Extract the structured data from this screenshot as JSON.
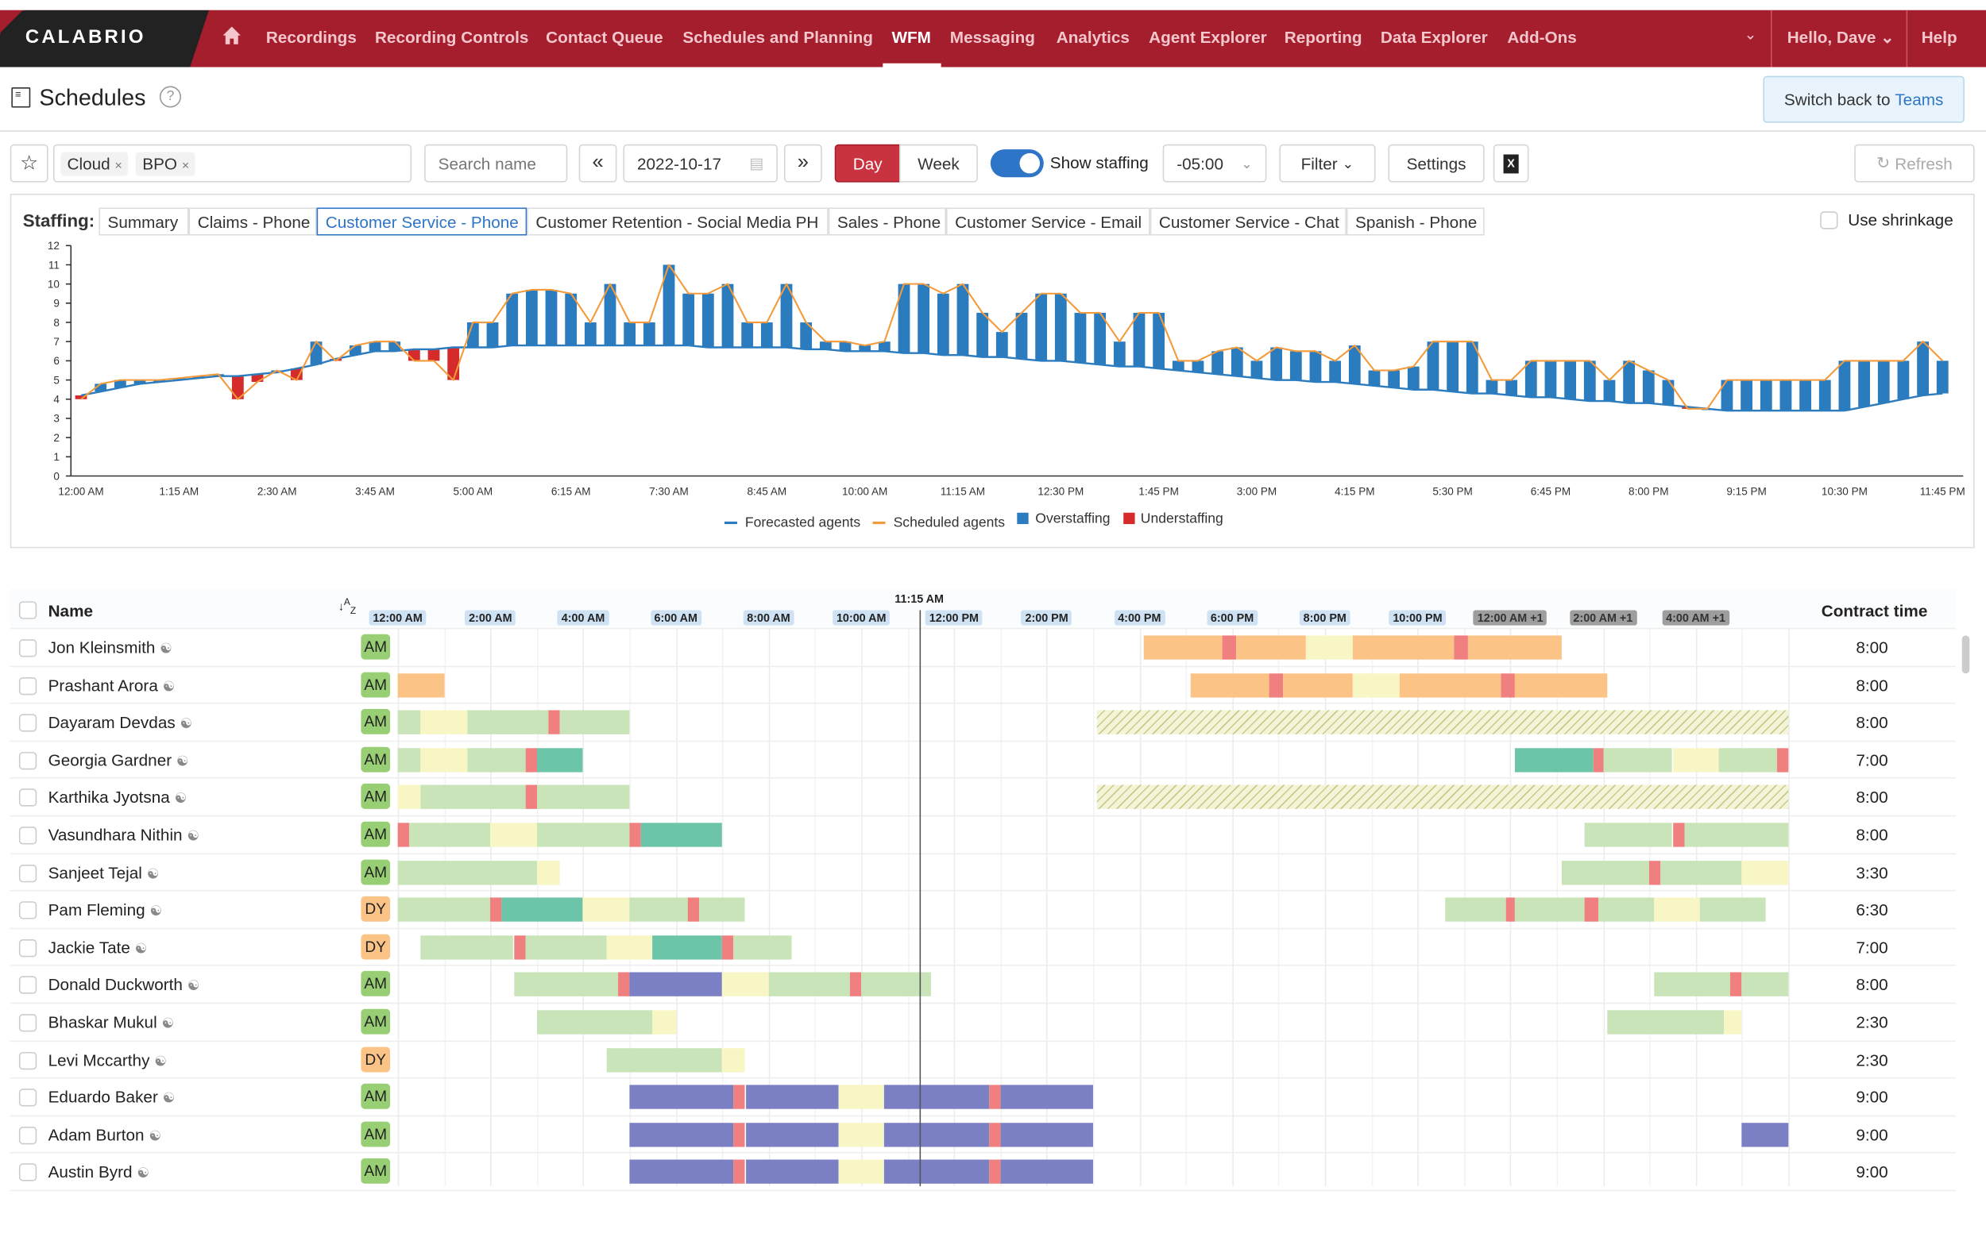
{
  "brand": "CALABRIO",
  "nav": {
    "items": [
      "Recordings",
      "Recording Controls",
      "Contact Queue",
      "Schedules and Planning",
      "WFM",
      "Messaging",
      "Analytics",
      "Agent Explorer",
      "Reporting",
      "Data Explorer",
      "Add-Ons"
    ],
    "active": "WFM",
    "greeting": "Hello, Dave",
    "help": "Help"
  },
  "page": {
    "title": "Schedules",
    "switch_prefix": "Switch back to ",
    "switch_link": "Teams"
  },
  "toolbar": {
    "filters": [
      "Cloud",
      "BPO"
    ],
    "search_placeholder": "Search name",
    "date": "2022-10-17",
    "day": "Day",
    "week": "Week",
    "show_staffing": "Show staffing",
    "show_staffing_on": true,
    "timezone": "-05:00",
    "filter": "Filter",
    "settings": "Settings",
    "refresh": "Refresh"
  },
  "staffing": {
    "label": "Staffing:",
    "tabs": [
      "Summary",
      "Claims - Phone",
      "Customer Service - Phone",
      "Customer Retention - Social Media PH",
      "Sales - Phone",
      "Customer Service - Email",
      "Customer Service - Chat",
      "Spanish - Phone"
    ],
    "selected": "Customer Service - Phone",
    "use_shrinkage": "Use shrinkage"
  },
  "chart_data": {
    "type": "bar",
    "xlabel": "",
    "ylabel": "",
    "ylim": [
      0,
      12
    ],
    "yticks": [
      0,
      1,
      2,
      3,
      4,
      5,
      6,
      7,
      8,
      9,
      10,
      11,
      12
    ],
    "xticks": [
      "12:00 AM",
      "1:15 AM",
      "2:30 AM",
      "3:45 AM",
      "5:00 AM",
      "6:15 AM",
      "7:30 AM",
      "8:45 AM",
      "10:00 AM",
      "11:15 AM",
      "12:30 PM",
      "1:45 PM",
      "3:00 PM",
      "4:15 PM",
      "5:30 PM",
      "6:45 PM",
      "8:00 PM",
      "9:15 PM",
      "10:30 PM",
      "11:45 PM"
    ],
    "interval_minutes": 15,
    "legend": [
      "Forecasted agents",
      "Scheduled agents",
      "Overstaffing",
      "Understaffing"
    ],
    "legend_position": "bottom",
    "colors": {
      "forecast": "#2b7bbf",
      "scheduled": "#f39a3a",
      "over": "#2b7bbf",
      "under": "#d62b2b"
    },
    "series": [
      {
        "name": "Forecasted agents",
        "values": [
          4.2,
          4.4,
          4.6,
          4.8,
          4.9,
          5.0,
          5.1,
          5.2,
          5.2,
          5.3,
          5.4,
          5.6,
          5.8,
          6.1,
          6.3,
          6.5,
          6.5,
          6.6,
          6.6,
          6.7,
          6.7,
          6.7,
          6.8,
          6.8,
          6.8,
          6.8,
          6.8,
          6.8,
          6.8,
          6.8,
          6.8,
          6.8,
          6.7,
          6.7,
          6.7,
          6.7,
          6.7,
          6.6,
          6.6,
          6.5,
          6.5,
          6.5,
          6.4,
          6.4,
          6.3,
          6.3,
          6.2,
          6.2,
          6.1,
          6.0,
          6.0,
          5.9,
          5.8,
          5.7,
          5.7,
          5.6,
          5.5,
          5.4,
          5.3,
          5.2,
          5.1,
          5.0,
          5.0,
          4.9,
          4.9,
          4.8,
          4.7,
          4.6,
          4.5,
          4.5,
          4.4,
          4.3,
          4.3,
          4.2,
          4.1,
          4.1,
          4.0,
          3.9,
          3.9,
          3.8,
          3.8,
          3.7,
          3.6,
          3.5,
          3.4,
          3.4,
          3.4,
          3.4,
          3.4,
          3.4,
          3.4,
          3.6,
          3.8,
          4.0,
          4.2,
          4.3
        ]
      },
      {
        "name": "Scheduled agents",
        "values": [
          4.0,
          4.8,
          5.0,
          5.0,
          5.0,
          5.1,
          5.2,
          5.3,
          4.0,
          4.9,
          5.5,
          5.0,
          7.0,
          6.0,
          6.8,
          7.0,
          7.0,
          6.0,
          6.0,
          5.0,
          8.0,
          8.0,
          9.5,
          9.7,
          9.7,
          9.5,
          8.0,
          10.0,
          8.0,
          8.0,
          11.0,
          9.5,
          9.5,
          10.0,
          8.0,
          8.0,
          10.0,
          8.0,
          7.0,
          7.0,
          6.8,
          7.0,
          10.0,
          10.0,
          9.5,
          10.0,
          8.5,
          7.5,
          8.5,
          9.5,
          9.5,
          8.5,
          8.5,
          7.0,
          8.5,
          8.5,
          6.0,
          6.0,
          6.5,
          6.7,
          6.0,
          6.7,
          6.5,
          6.5,
          6.0,
          6.8,
          5.5,
          5.5,
          5.7,
          7.0,
          7.0,
          7.0,
          5.0,
          5.0,
          6.0,
          6.0,
          6.0,
          6.0,
          5.0,
          6.0,
          5.5,
          5.0,
          3.5,
          3.5,
          5.0,
          5.0,
          5.0,
          5.0,
          5.0,
          5.0,
          6.0,
          6.0,
          6.0,
          6.0,
          7.0,
          6.0
        ]
      }
    ]
  },
  "schedule": {
    "header": {
      "name": "Name",
      "contract": "Contract time",
      "current_time": "11:15 AM",
      "current_hour": 11.25
    },
    "time_labels": [
      "12:00 AM",
      "2:00 AM",
      "4:00 AM",
      "6:00 AM",
      "8:00 AM",
      "10:00 AM",
      "12:00 PM",
      "2:00 PM",
      "4:00 PM",
      "6:00 PM",
      "8:00 PM",
      "10:00 PM",
      "12:00 AM +1",
      "2:00 AM +1",
      "4:00 AM +1"
    ],
    "colors": {
      "phone": "#fbc486",
      "work": "#c8e4b8",
      "lunch": "#f8f6c4",
      "break": "#f08080",
      "meeting": "#6cc5a8",
      "training": "#7b7fc4"
    },
    "rows": [
      {
        "name": "Jon Kleinsmith",
        "badge": "AM",
        "contract": "8:00",
        "segs": [
          [
            16.1,
            17.8,
            "phone"
          ],
          [
            17.8,
            18.1,
            "break"
          ],
          [
            18.1,
            19.6,
            "phone"
          ],
          [
            19.6,
            20.6,
            "lunch"
          ],
          [
            20.6,
            22.8,
            "phone"
          ],
          [
            22.8,
            23.1,
            "break"
          ],
          [
            23.1,
            25.1,
            "phone"
          ]
        ]
      },
      {
        "name": "Prashant Arora",
        "badge": "AM",
        "contract": "8:00",
        "segs": [
          [
            0,
            1,
            "phone"
          ],
          [
            17.1,
            18.8,
            "phone"
          ],
          [
            18.8,
            19.1,
            "break"
          ],
          [
            19.1,
            20.6,
            "phone"
          ],
          [
            20.6,
            21.6,
            "lunch"
          ],
          [
            21.6,
            23.8,
            "phone"
          ],
          [
            23.8,
            24.1,
            "break"
          ],
          [
            24.1,
            26.1,
            "phone"
          ]
        ]
      },
      {
        "name": "Dayaram Devdas",
        "badge": "AM",
        "contract": "8:00",
        "segs": [
          [
            0,
            0.5,
            "work"
          ],
          [
            0.5,
            1.5,
            "lunch"
          ],
          [
            1.5,
            3.25,
            "work"
          ],
          [
            3.25,
            3.5,
            "break"
          ],
          [
            3.5,
            5,
            "work"
          ],
          [
            15.07,
            30,
            "hatched"
          ]
        ]
      },
      {
        "name": "Georgia Gardner",
        "badge": "AM",
        "contract": "7:00",
        "segs": [
          [
            0,
            0.5,
            "work"
          ],
          [
            0.5,
            1.5,
            "lunch"
          ],
          [
            1.5,
            2.75,
            "work"
          ],
          [
            2.75,
            3,
            "break"
          ],
          [
            3,
            4,
            "meeting"
          ],
          [
            24.1,
            25.8,
            "meeting"
          ],
          [
            25.8,
            26,
            "break"
          ],
          [
            26,
            27.5,
            "work"
          ],
          [
            27.5,
            28.5,
            "lunch"
          ],
          [
            28.5,
            29.75,
            "work"
          ],
          [
            29.75,
            30,
            "break"
          ]
        ]
      },
      {
        "name": "Karthika Jyotsna",
        "badge": "AM",
        "contract": "8:00",
        "segs": [
          [
            0,
            0.5,
            "lunch"
          ],
          [
            0.5,
            2.75,
            "work"
          ],
          [
            2.75,
            3,
            "break"
          ],
          [
            3,
            5,
            "work"
          ],
          [
            15.07,
            30,
            "hatched"
          ]
        ]
      },
      {
        "name": "Vasundhara Nithin",
        "badge": "AM",
        "contract": "8:00",
        "segs": [
          [
            0,
            0.25,
            "break"
          ],
          [
            0.25,
            2,
            "work"
          ],
          [
            2,
            3,
            "lunch"
          ],
          [
            3,
            5,
            "work"
          ],
          [
            5,
            5.25,
            "break"
          ],
          [
            5.25,
            7,
            "meeting"
          ],
          [
            25.6,
            27.5,
            "work"
          ],
          [
            27.5,
            27.75,
            "break"
          ],
          [
            27.75,
            30,
            "work"
          ]
        ]
      },
      {
        "name": "Sanjeet Tejal",
        "badge": "AM",
        "contract": "3:30",
        "segs": [
          [
            0,
            3,
            "work"
          ],
          [
            3,
            3.5,
            "lunch"
          ],
          [
            25.1,
            27,
            "work"
          ],
          [
            27,
            27.25,
            "break"
          ],
          [
            27.25,
            29,
            "work"
          ],
          [
            29,
            30,
            "lunch"
          ]
        ]
      },
      {
        "name": "Pam Fleming",
        "badge": "DY",
        "contract": "6:30",
        "segs": [
          [
            0,
            2,
            "work"
          ],
          [
            2,
            2.25,
            "break"
          ],
          [
            2.25,
            4,
            "meeting"
          ],
          [
            4,
            5,
            "lunch"
          ],
          [
            5,
            6.25,
            "work"
          ],
          [
            6.25,
            6.5,
            "break"
          ],
          [
            6.5,
            7.5,
            "work"
          ],
          [
            22.6,
            23.9,
            "work"
          ],
          [
            23.9,
            24.1,
            "break"
          ],
          [
            24.1,
            25.6,
            "work"
          ],
          [
            25.6,
            25.9,
            "break"
          ],
          [
            25.9,
            27.1,
            "work"
          ],
          [
            27.1,
            28.1,
            "lunch"
          ],
          [
            28.1,
            29.5,
            "work"
          ]
        ]
      },
      {
        "name": "Jackie Tate",
        "badge": "DY",
        "contract": "7:00",
        "segs": [
          [
            0.5,
            2.5,
            "work"
          ],
          [
            2.5,
            2.75,
            "break"
          ],
          [
            2.75,
            4.5,
            "work"
          ],
          [
            4.5,
            5.5,
            "lunch"
          ],
          [
            5.5,
            7,
            "meeting"
          ],
          [
            7,
            7.25,
            "break"
          ],
          [
            7.25,
            8.5,
            "work"
          ]
        ]
      },
      {
        "name": "Donald Duckworth",
        "badge": "AM",
        "contract": "8:00",
        "segs": [
          [
            2.5,
            4.75,
            "work"
          ],
          [
            4.75,
            5,
            "break"
          ],
          [
            5,
            7,
            "training"
          ],
          [
            7,
            8,
            "lunch"
          ],
          [
            8,
            9.75,
            "work"
          ],
          [
            9.75,
            10,
            "break"
          ],
          [
            10,
            11.5,
            "work"
          ],
          [
            27.1,
            28.75,
            "work"
          ],
          [
            28.75,
            29,
            "break"
          ],
          [
            29,
            30,
            "work"
          ]
        ]
      },
      {
        "name": "Bhaskar Mukul",
        "badge": "AM",
        "contract": "2:30",
        "segs": [
          [
            3,
            5.5,
            "work"
          ],
          [
            5.5,
            6,
            "lunch"
          ],
          [
            26.1,
            28.6,
            "work"
          ],
          [
            28.6,
            29,
            "lunch"
          ]
        ]
      },
      {
        "name": "Levi Mccarthy",
        "badge": "DY",
        "contract": "2:30",
        "segs": [
          [
            4.5,
            7,
            "work"
          ],
          [
            7,
            7.5,
            "lunch"
          ]
        ]
      },
      {
        "name": "Eduardo Baker",
        "badge": "AM",
        "contract": "9:00",
        "segs": [
          [
            5,
            7.25,
            "training"
          ],
          [
            7.25,
            7.5,
            "break"
          ],
          [
            7.5,
            9.5,
            "training"
          ],
          [
            9.5,
            10.5,
            "lunch"
          ],
          [
            10.5,
            12.75,
            "training"
          ],
          [
            12.75,
            13,
            "break"
          ],
          [
            13,
            15,
            "training"
          ]
        ]
      },
      {
        "name": "Adam Burton",
        "badge": "AM",
        "contract": "9:00",
        "segs": [
          [
            5,
            7.25,
            "training"
          ],
          [
            7.25,
            7.5,
            "break"
          ],
          [
            7.5,
            9.5,
            "training"
          ],
          [
            9.5,
            10.5,
            "lunch"
          ],
          [
            10.5,
            12.75,
            "training"
          ],
          [
            12.75,
            13,
            "break"
          ],
          [
            13,
            15,
            "training"
          ],
          [
            29,
            30,
            "training"
          ]
        ]
      },
      {
        "name": "Austin Byrd",
        "badge": "AM",
        "contract": "9:00",
        "segs": [
          [
            5,
            7.25,
            "training"
          ],
          [
            7.25,
            7.5,
            "break"
          ],
          [
            7.5,
            9.5,
            "training"
          ],
          [
            9.5,
            10.5,
            "lunch"
          ],
          [
            10.5,
            12.75,
            "training"
          ],
          [
            12.75,
            13,
            "break"
          ],
          [
            13,
            15,
            "training"
          ]
        ]
      }
    ]
  }
}
